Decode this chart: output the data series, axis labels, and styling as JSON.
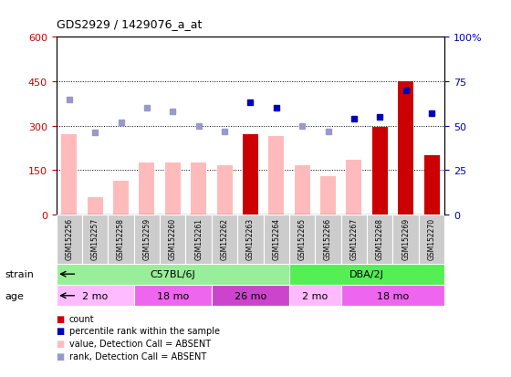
{
  "title": "GDS2929 / 1429076_a_at",
  "samples": [
    "GSM152256",
    "GSM152257",
    "GSM152258",
    "GSM152259",
    "GSM152260",
    "GSM152261",
    "GSM152262",
    "GSM152263",
    "GSM152264",
    "GSM152265",
    "GSM152266",
    "GSM152267",
    "GSM152268",
    "GSM152269",
    "GSM152270"
  ],
  "bar_values": [
    270,
    60,
    115,
    175,
    175,
    175,
    165,
    270,
    265,
    165,
    130,
    185,
    295,
    450,
    200
  ],
  "bar_absent": [
    true,
    true,
    true,
    true,
    true,
    true,
    true,
    false,
    true,
    true,
    true,
    true,
    false,
    false,
    false
  ],
  "rank_values": [
    65,
    46,
    52,
    60,
    58,
    50,
    47,
    63,
    60,
    50,
    47,
    54,
    55,
    70,
    57
  ],
  "rank_absent": [
    true,
    true,
    true,
    true,
    true,
    true,
    true,
    false,
    false,
    true,
    true,
    false,
    false,
    false,
    false
  ],
  "ylim_left": [
    0,
    600
  ],
  "ylim_right": [
    0,
    100
  ],
  "yticks_left": [
    0,
    150,
    300,
    450,
    600
  ],
  "ytick_labels_right": [
    "0",
    "25",
    "50",
    "75",
    "100%"
  ],
  "yticks_right": [
    0,
    25,
    50,
    75,
    100
  ],
  "color_bar_present": "#cc0000",
  "color_bar_absent": "#ffbbbb",
  "color_rank_present": "#0000bb",
  "color_rank_absent": "#9999cc",
  "strain_groups": [
    {
      "label": "C57BL/6J",
      "start": 0,
      "end": 9,
      "color": "#99ee99"
    },
    {
      "label": "DBA/2J",
      "start": 9,
      "end": 15,
      "color": "#55ee55"
    }
  ],
  "age_groups": [
    {
      "label": "2 mo",
      "start": 0,
      "end": 3,
      "color": "#ffbbff"
    },
    {
      "label": "18 mo",
      "start": 3,
      "end": 6,
      "color": "#ee66ee"
    },
    {
      "label": "26 mo",
      "start": 6,
      "end": 9,
      "color": "#cc44cc"
    },
    {
      "label": "2 mo",
      "start": 9,
      "end": 11,
      "color": "#ffbbff"
    },
    {
      "label": "18 mo",
      "start": 11,
      "end": 15,
      "color": "#ee66ee"
    }
  ],
  "legend_items": [
    {
      "label": "count",
      "color": "#cc0000"
    },
    {
      "label": "percentile rank within the sample",
      "color": "#0000bb"
    },
    {
      "label": "value, Detection Call = ABSENT",
      "color": "#ffbbbb"
    },
    {
      "label": "rank, Detection Call = ABSENT",
      "color": "#9999cc"
    }
  ],
  "sample_box_color": "#cccccc",
  "ylabel_left_color": "#cc0000",
  "ylabel_right_color": "#0000bb"
}
